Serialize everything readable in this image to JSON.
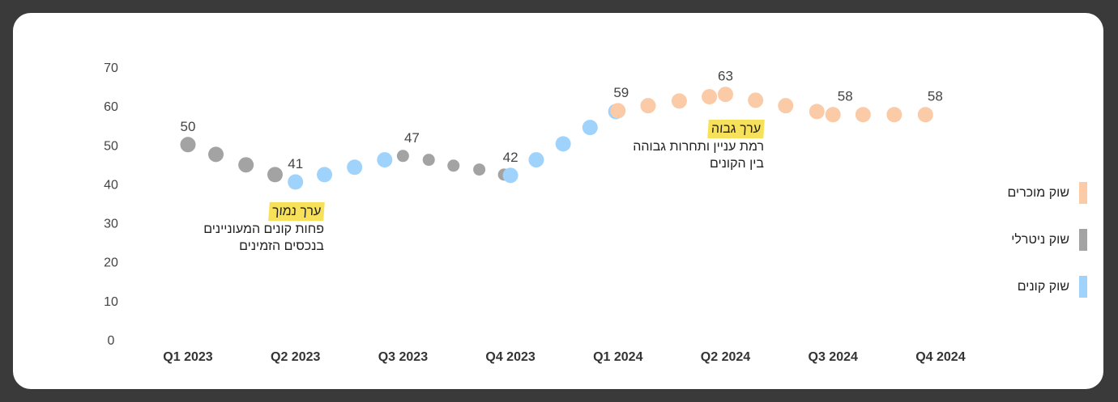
{
  "chart_data": {
    "type": "scatter",
    "categories": [
      "Q1 2023",
      "Q2 2023",
      "Q3 2023",
      "Q4 2023",
      "Q1 2024",
      "Q2 2024",
      "Q3 2024",
      "Q4 2024"
    ],
    "y_ticks": [
      0,
      10,
      20,
      30,
      40,
      50,
      60,
      70
    ],
    "ylim": [
      0,
      70
    ],
    "grid": false,
    "legend_position": "right",
    "series": [
      {
        "name": "שוק מוכרים",
        "color": "#fbcba7",
        "points": [
          [
            4.0,
            58.8
          ],
          [
            4.28,
            60.1
          ],
          [
            4.57,
            61.3
          ],
          [
            4.85,
            62.4
          ],
          [
            5.0,
            63.0
          ],
          [
            5.28,
            61.5
          ],
          [
            5.56,
            60.1
          ],
          [
            5.85,
            58.6
          ],
          [
            6.0,
            57.8
          ],
          [
            6.28,
            57.8
          ],
          [
            6.57,
            57.8
          ],
          [
            6.86,
            57.8
          ]
        ]
      },
      {
        "name": "שוק ניטרלי",
        "color": "#a3a3a3",
        "points": [
          [
            0,
            50.1
          ],
          [
            0.26,
            47.6
          ],
          [
            0.54,
            44.9
          ],
          [
            0.81,
            42.4
          ],
          [
            2.0,
            47.2
          ],
          [
            2.24,
            46.2
          ],
          [
            2.47,
            44.7
          ],
          [
            2.71,
            43.7
          ],
          [
            2.94,
            42.4
          ]
        ]
      },
      {
        "name": "שוק קונים",
        "color": "#9fd3fb",
        "points": [
          [
            1.0,
            40.5
          ],
          [
            1.27,
            42.4
          ],
          [
            1.55,
            44.3
          ],
          [
            1.83,
            46.2
          ],
          [
            3.0,
            42.2
          ],
          [
            3.24,
            46.2
          ],
          [
            3.49,
            50.3
          ],
          [
            3.74,
            54.5
          ],
          [
            3.98,
            58.6
          ]
        ]
      }
    ],
    "data_labels": [
      {
        "x": 0,
        "y": 50.1,
        "text": "50"
      },
      {
        "x": 1.0,
        "y": 40.5,
        "text": "41"
      },
      {
        "x": 2.0,
        "y": 47.2,
        "text": "47"
      },
      {
        "x": 3.0,
        "y": 42.2,
        "text": "42"
      },
      {
        "x": 4.0,
        "y": 58.8,
        "text": "59"
      },
      {
        "x": 5.0,
        "y": 63.0,
        "text": "63"
      },
      {
        "x": 6.0,
        "y": 57.8,
        "text": "58"
      },
      {
        "x": 6.86,
        "y": 57.8,
        "text": "58"
      }
    ],
    "annotations": {
      "low": {
        "title": "ערך נמוך",
        "lines": [
          "פחות קונים המעוניינים",
          "בנכסים הזמינים"
        ]
      },
      "high": {
        "title": "ערך גבוה",
        "lines": [
          "רמת עניין ותחרות גבוהה",
          "בין הקונים"
        ]
      }
    }
  }
}
